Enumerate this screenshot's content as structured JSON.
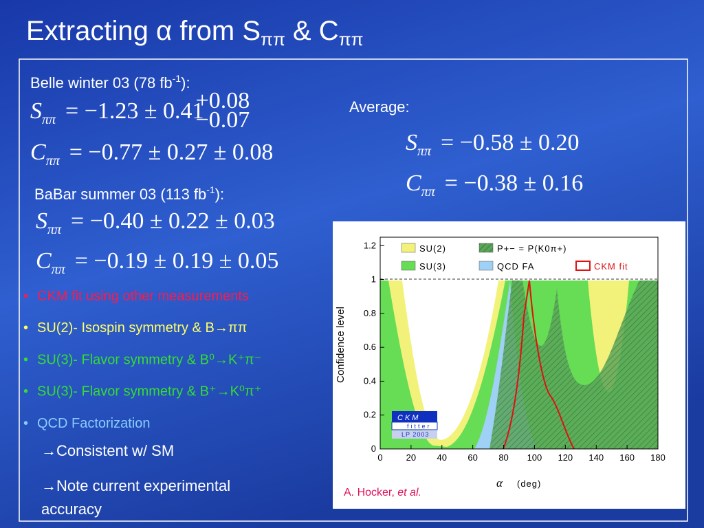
{
  "title": {
    "lead": "Extracting α from S",
    "sub1": "ππ",
    "mid": " & C",
    "sub2": "ππ"
  },
  "belle": {
    "heading": "Belle winter 03 (78 fb",
    "sup": "-1",
    "tail": "):",
    "equations": [
      {
        "symbol": "S",
        "sub": "ππ",
        "expr": "= −1.23 ± 0.41",
        "upper": "+0.08",
        "lower": "−0.07"
      },
      {
        "symbol": "C",
        "sub": "ππ",
        "expr": "= −0.77 ± 0.27 ± 0.08"
      }
    ]
  },
  "babar": {
    "heading": "BaBar summer 03 (113 fb",
    "sup": "-1",
    "tail": "):",
    "equations": [
      {
        "symbol": "S",
        "sub": "ππ",
        "expr": "= −0.40 ± 0.22 ± 0.03"
      },
      {
        "symbol": "C",
        "sub": "ππ",
        "expr": "= −0.19 ± 0.19 ± 0.05"
      }
    ]
  },
  "average": {
    "heading": "Average:",
    "equations": [
      {
        "symbol": "S",
        "sub": "ππ",
        "expr": "= −0.58 ± 0.20"
      },
      {
        "symbol": "C",
        "sub": "ππ",
        "expr": "= −0.38 ± 0.16"
      }
    ]
  },
  "bullets": [
    {
      "text": "CKM fit using other measurements",
      "color": "#ff1a4a"
    },
    {
      "text": "SU(2)- Isospin symmetry & B→ππ",
      "color": "#ffff66"
    },
    {
      "text": "SU(3)- Flavor symmetry & B⁰→K⁺π⁻",
      "color": "#33dd33"
    },
    {
      "text": "SU(3)- Flavor symmetry & B⁺→K⁰π⁺",
      "color": "#33dd33"
    },
    {
      "text": "QCD Factorization",
      "color": "#88ccff"
    }
  ],
  "conclusions": [
    "→Consistent w/ SM",
    "→Note current experimental",
    "accuracy"
  ],
  "figure": {
    "ylabel": "Confidence level",
    "xlabel_symbol": "α",
    "xlabel_unit": "(deg)",
    "xlim": [
      0,
      180
    ],
    "ylim": [
      0,
      1.25
    ],
    "xticks": [
      0,
      20,
      40,
      60,
      80,
      100,
      120,
      140,
      160,
      180
    ],
    "yticks": [
      0,
      0.2,
      0.4,
      0.6,
      0.8,
      1,
      1.2
    ],
    "legend": [
      {
        "name": "SU(2)",
        "color": "#f2f27a"
      },
      {
        "name": "SU(3)",
        "color": "#66dd55"
      },
      {
        "name": "P+− = P(K0π+)",
        "color": "#5aa55a"
      },
      {
        "name": "QCD FA",
        "color": "#9fd0f5"
      },
      {
        "name": "CKM fit",
        "color": "#e01010"
      }
    ],
    "logo": [
      "CKM",
      "fitter",
      "LP 2003"
    ],
    "credit": "A. Hocker, ",
    "credit_em": "et al."
  }
}
